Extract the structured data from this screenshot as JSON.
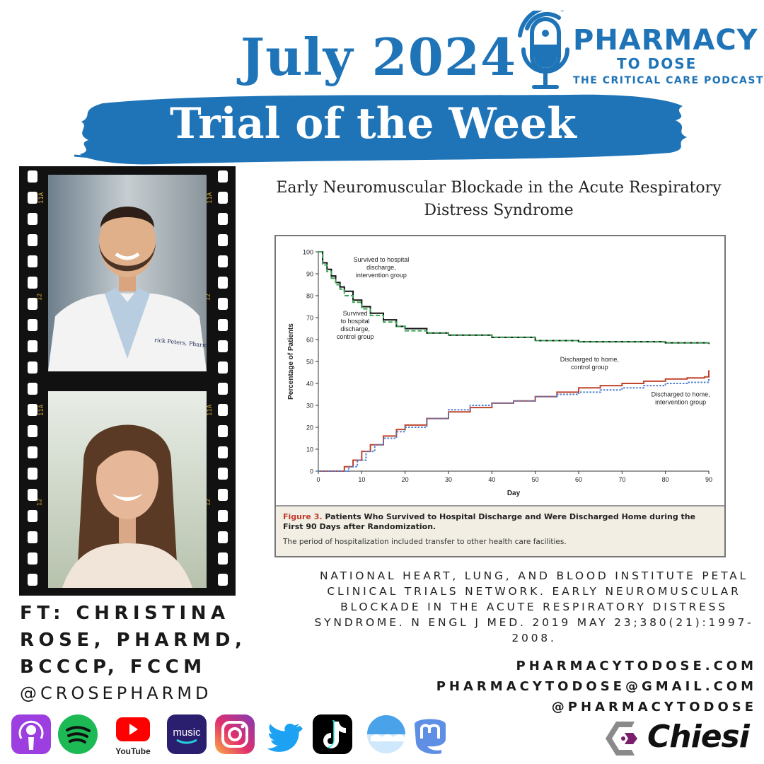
{
  "header": {
    "date": "July 2024",
    "banner": "Trial of the Week"
  },
  "logo": {
    "title": "PHARMACY",
    "subtitle": "TO DOSE",
    "tagline": "THE CRITICAL CARE PODCAST",
    "icon": "microphone-pill-icon",
    "color": "#1f74b8"
  },
  "paper": {
    "title": "Early Neuromuscular Blockade in the Acute Respiratory Distress Syndrome"
  },
  "chart_data": {
    "type": "line",
    "xlabel": "Day",
    "ylabel": "Percentage of Patients",
    "xlim": [
      0,
      90
    ],
    "ylim": [
      0,
      100
    ],
    "xticks": [
      0,
      10,
      20,
      30,
      40,
      50,
      60,
      70,
      80,
      90
    ],
    "yticks": [
      0,
      10,
      20,
      30,
      40,
      50,
      60,
      70,
      80,
      90,
      100
    ],
    "series": [
      {
        "name": "Survived to hospital discharge, intervention group",
        "color": "#111111",
        "style": "solid",
        "x": [
          0,
          1,
          2,
          3,
          4,
          5,
          6,
          8,
          10,
          12,
          15,
          18,
          20,
          25,
          30,
          40,
          50,
          60,
          70,
          80,
          90
        ],
        "y": [
          100,
          95,
          92,
          89,
          86,
          84,
          82,
          78,
          75,
          72,
          69,
          66,
          65,
          63,
          62,
          61,
          59.5,
          59,
          59,
          58.5,
          58
        ]
      },
      {
        "name": "Survived to hospital discharge, control group",
        "color": "#3aa655",
        "style": "dashed",
        "x": [
          0,
          1,
          2,
          3,
          4,
          5,
          6,
          8,
          10,
          12,
          15,
          18,
          20,
          25,
          30,
          40,
          50,
          60,
          70,
          80,
          90
        ],
        "y": [
          100,
          94,
          91,
          88,
          85,
          83,
          80,
          77,
          74,
          71,
          68,
          66,
          64,
          63,
          62,
          61,
          59.5,
          59,
          59,
          58.5,
          58
        ]
      },
      {
        "name": "Discharged to home, control group",
        "color": "#c0452c",
        "style": "solid",
        "x": [
          0,
          4,
          6,
          8,
          10,
          12,
          15,
          18,
          20,
          25,
          30,
          35,
          40,
          45,
          50,
          55,
          60,
          65,
          70,
          75,
          80,
          85,
          89,
          90
        ],
        "y": [
          0,
          0,
          2,
          5,
          9,
          12,
          16,
          19,
          21,
          24,
          27,
          29,
          31,
          32,
          34,
          36,
          38,
          39,
          40,
          41,
          42,
          42.5,
          43,
          46
        ]
      },
      {
        "name": "Discharged to home, intervention group",
        "color": "#4f7fd0",
        "style": "dotted",
        "x": [
          0,
          5,
          7,
          9,
          11,
          13,
          15,
          18,
          20,
          25,
          30,
          35,
          40,
          45,
          50,
          55,
          60,
          65,
          70,
          75,
          80,
          85,
          90
        ],
        "y": [
          0,
          0,
          2,
          5,
          9,
          12,
          15,
          18,
          20,
          24,
          28,
          30,
          31,
          32,
          34,
          35,
          36,
          37,
          38,
          39,
          40,
          40.5,
          42
        ]
      }
    ],
    "annotations": [
      {
        "lines": [
          "Survived to hospital",
          "discharge,",
          "intervention group"
        ],
        "x": 14.5,
        "y": 95.5,
        "anchor": "middle"
      },
      {
        "lines": [
          "Survived",
          "to hospital",
          "discharge,",
          "control group"
        ],
        "x": 8.5,
        "y": 71,
        "anchor": "middle"
      },
      {
        "lines": [
          "Discharged to home,",
          "control group"
        ],
        "x": 62.5,
        "y": 50,
        "anchor": "middle"
      },
      {
        "lines": [
          "Discharged to home,",
          "intervention group"
        ],
        "x": 83.5,
        "y": 34,
        "anchor": "middle"
      }
    ]
  },
  "figure": {
    "label": "Figure 3.",
    "caption": "Patients Who Survived to Hospital Discharge and Were Discharged Home during the First 90 Days after Randomization.",
    "note": "The period of hospitalization included transfer to other health care facilities."
  },
  "citation": "National Heart, Lung, and Blood Institute PETAL Clinical Trials Network. Early Neuromuscular Blockade in the Acute Respiratory Distress Syndrome. N Engl J Med. 2019 May 23;380(21):1997-2008.",
  "guest": {
    "lines": [
      "FT: CHRISTINA",
      "ROSE, PHARMD,",
      "BCCCP, FCCM"
    ],
    "handle": "@CROSEPHARMD"
  },
  "film": {
    "marks_top": [
      "11A",
      "12"
    ],
    "marks_bottom": [
      "11A",
      "12"
    ],
    "name_tag": "rick Peters, PharmD"
  },
  "contact": {
    "website": "PHARMACYTODOSE.COM",
    "email": "PHARMACYTODOSE@GMAIL.COM",
    "social": "@PHARMACYTODOSE"
  },
  "platforms": [
    {
      "icon": "apple-podcasts-icon",
      "color": "#9c3ee0"
    },
    {
      "icon": "spotify-icon",
      "color": "#1db954"
    },
    {
      "icon": "youtube-icon",
      "color": "#ff0000",
      "label": "YouTube"
    },
    {
      "icon": "amazon-music-icon",
      "color": "#2a1e6e",
      "label": "music"
    },
    {
      "icon": "instagram-icon",
      "color": "#d62976"
    },
    {
      "icon": "twitter-icon",
      "color": "#1da1f2"
    },
    {
      "icon": "tiktok-icon",
      "color": "#000000"
    },
    {
      "icon": "bluesky-icon",
      "color": "#5ab0e8"
    },
    {
      "icon": "mastodon-icon",
      "color": "#5e8fe5"
    }
  ],
  "sponsor": {
    "name": "Chiesi",
    "icon": "chiesi-logo-icon"
  }
}
